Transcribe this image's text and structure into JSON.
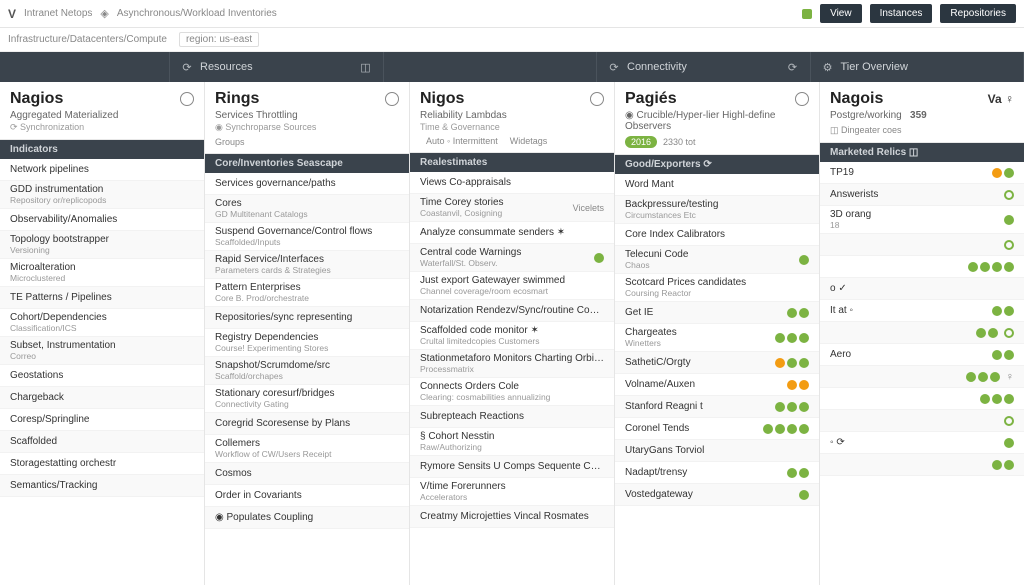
{
  "top": {
    "logo": "V",
    "logotext": "Intranet Netops",
    "crumb_icon": "◈",
    "subtitle": "Asynchronous/Workload Inventories",
    "btn1": "View",
    "btn2": "Instances",
    "btn3": "Repositories"
  },
  "crumbs": {
    "path": "Infrastructure/Datacenters/Compute",
    "tag": "region: us-east"
  },
  "tabs": [
    {
      "icon": "⟳",
      "label": "Resources",
      "right": "◫"
    },
    {
      "icon": "",
      "label": "",
      "right": ""
    },
    {
      "icon": "⟳",
      "label": "Connectivity",
      "right": "⟳"
    },
    {
      "icon": "⚙",
      "label": "Tier Overview",
      "right": ""
    }
  ],
  "panels": [
    {
      "title": "Nagios",
      "title_icon": "⊕",
      "sub": "Aggregated Materialized",
      "sub2": "⟳ Synchronization",
      "section": "Indicators",
      "rows": [
        {
          "l1": "Network pipelines",
          "l2": ""
        },
        {
          "l1": "GDD instrumentation",
          "l2": "Repository or/replicopods"
        },
        {
          "l1": "Observability/Anomalies",
          "l2": ""
        },
        {
          "l1": "Topology bootstrapper",
          "l2": "Versioning"
        },
        {
          "l1": "Microalteration",
          "l2": "Microclustered"
        },
        {
          "l1": "TE Patterns / Pipelines",
          "l2": ""
        },
        {
          "l1": "Cohort/Dependencies",
          "l2": "Classification/ICS"
        },
        {
          "l1": "Subset, Instrumentation",
          "l2": "Correo"
        },
        {
          "l1": "Geostations",
          "l2": ""
        },
        {
          "l1": "Chargeback",
          "l2": ""
        },
        {
          "l1": "Coresp/Springline",
          "l2": ""
        },
        {
          "l1": "Scaffolded",
          "l2": ""
        },
        {
          "l1": "Storagestatting orchestr",
          "l2": ""
        },
        {
          "l1": "Semantics/Tracking",
          "l2": ""
        }
      ]
    },
    {
      "title": "Rings",
      "title_icon": "✶",
      "sub": "Services Throttling",
      "sub2": "◉ Synchroparse Sources",
      "meta": "Groups",
      "section": "Core/Inventories Seascape",
      "rows": [
        {
          "l1": "Services governance/paths",
          "l2": ""
        },
        {
          "l1": "Cores",
          "l2": "GD Multitenant Catalogs"
        },
        {
          "l1": "Suspend Governance/Control flows",
          "l2": "Scaffolded/Inputs"
        },
        {
          "l1": "Rapid Service/Interfaces",
          "l2": "Parameters cards & Strategies"
        },
        {
          "l1": "Pattern Enterprises",
          "l2": "Core B. Prod/orchestrate"
        },
        {
          "l1": "Repositories/sync representing",
          "l2": ""
        },
        {
          "l1": "Registry Dependencies",
          "l2": "Course! Experimenting Stores"
        },
        {
          "l1": "Snapshot/Scrumdome/src",
          "l2": "Scaffold/orchapes"
        },
        {
          "l1": "Stationary coresurf/bridges",
          "l2": "Connectivity Gating"
        },
        {
          "l1": "Coregrid Scoresense by Plans",
          "l2": ""
        },
        {
          "l1": "Collemers",
          "l2": "Workflow of CW/Users Receipt"
        },
        {
          "l1": "Cosmos",
          "l2": ""
        },
        {
          "l1": "Order in Covariants",
          "l2": ""
        },
        {
          "l1": "◉ Populates Coupling",
          "l2": ""
        }
      ]
    },
    {
      "title": "Nigos",
      "title_icon": "⊕",
      "sub": "Reliability Lambdas",
      "sub2": "Time & Governance",
      "meta_r": "Auto  ◦ Intermittent",
      "extra": "Widetags",
      "section": "Realestimates",
      "rows": [
        {
          "l1": "Views Co-appraisals",
          "l2": ""
        },
        {
          "l1": "Time Corey stories",
          "l2": "Coastanvil, Cosigning",
          "extra": "Vicelets"
        },
        {
          "l1": "Analyze consummate senders  ✶",
          "l2": ""
        },
        {
          "l1": "Central code Warnings",
          "l2": "Waterfall/St. Observ.",
          "dot": "g"
        },
        {
          "l1": "Just export Gatewayer swimmed",
          "l2": "Channel coverage/room ecosmart"
        },
        {
          "l1": "Notarization Rendezv/Sync/routine Cosmate",
          "l2": ""
        },
        {
          "l1": "Scaffolded code monitor  ✶",
          "l2": "Crultal limitedcopies Customers"
        },
        {
          "l1": "Stationmetaforo Monitors Charting Orbits Gas",
          "l2": "Processmatrix"
        },
        {
          "l1": "Connects Orders Cole",
          "l2": "Clearing: cosmabilities annualizing"
        },
        {
          "l1": "Subrepteach Reactions",
          "l2": ""
        },
        {
          "l1": "§ Cohort Nesstin",
          "l2": "Raw/Authorizing"
        },
        {
          "l1": "Rymore Sensits U Comps    Sequente Cosperates",
          "l2": ""
        },
        {
          "l1": "V/time Forerunners",
          "l2": "Accelerators"
        },
        {
          "l1": "Creatmy Microjetties    Vincal Rosmates",
          "l2": ""
        }
      ]
    },
    {
      "title": "Pagiés",
      "title_icon": "⊕",
      "sub": "◉ Crucible/Hyper-lier Highl-define Observers",
      "badge": "2016",
      "badge2": "2330 tot",
      "section": "Good/Exporters ⟳",
      "rows": [
        {
          "l1": "Word Mant",
          "l2": ""
        },
        {
          "l1": "Backpressure/testing",
          "l2": "Circumstances Etc"
        },
        {
          "l1": "Core Index Calibrators",
          "l2": ""
        },
        {
          "l1": "Telecuni Code",
          "l2": "Chaos",
          "dot": "g"
        },
        {
          "l1": "Scotcard Prices candidates",
          "l2": "Coursing Reactor"
        },
        {
          "l1": "Get IE",
          "l2": "",
          "dots": [
            "g",
            "g"
          ]
        },
        {
          "l1": "Chargeates",
          "l2": "Winetters",
          "dots": [
            "g",
            "g",
            "g"
          ]
        },
        {
          "l1": "SathetiC/Orgty",
          "l2": "",
          "dots": [
            "o",
            "g",
            "g"
          ]
        },
        {
          "l1": "Volname/Auxen",
          "l2": "",
          "dots": [
            "o",
            "o"
          ]
        },
        {
          "l1": "Stanford Reagni t",
          "l2": "",
          "dots": [
            "g",
            "g",
            "g"
          ]
        },
        {
          "l1": "Coronel Tends",
          "l2": "",
          "dots": [
            "g",
            "g",
            "g",
            "g"
          ]
        },
        {
          "l1": "UtaryGans Torviol",
          "l2": ""
        },
        {
          "l1": "Nadapt/trensy",
          "l2": "",
          "dots": [
            "g",
            "g"
          ]
        },
        {
          "l1": "Vostedgateway",
          "l2": "",
          "dots": [
            "g"
          ]
        }
      ]
    },
    {
      "title": "Nagois",
      "title_icon": "",
      "right": "Va ♀",
      "sub": "Postgre/working",
      "sub_r": "359",
      "meta": "◫ Dingeater coes",
      "section": "Marketed Relics  ◫",
      "rows": [
        {
          "l1": "TP19",
          "l2": "",
          "dots": [
            "o",
            "g"
          ]
        },
        {
          "l1": "Answerists",
          "l2": "",
          "ring": "gr"
        },
        {
          "l1": "3D orang",
          "l2": "18",
          "dots": [
            "g"
          ]
        },
        {
          "l1": "",
          "l2": "",
          "ring": "gr"
        },
        {
          "l1": "",
          "l2": "",
          "dots": [
            "g",
            "g",
            "g",
            "g"
          ]
        },
        {
          "l1": "o  ✓",
          "l2": "",
          "small": true
        },
        {
          "l1": "It at ◦",
          "l2": "",
          "dots": [
            "g",
            "g"
          ]
        },
        {
          "l1": "",
          "l2": "",
          "dots": [
            "g",
            "g"
          ],
          "ring": "gr"
        },
        {
          "l1": "Aero",
          "l2": "",
          "dots": [
            "g",
            "g"
          ]
        },
        {
          "l1": "",
          "l2": "",
          "dots": [
            "g",
            "g",
            "g"
          ],
          "extra_ic": "♀"
        },
        {
          "l1": "",
          "l2": "",
          "dots": [
            "g",
            "g",
            "g"
          ]
        },
        {
          "l1": "",
          "l2": "",
          "ring": "gr"
        },
        {
          "l1": "◦ ⟳",
          "l2": "",
          "dots": [
            "g"
          ]
        },
        {
          "l1": "",
          "l2": "",
          "dots": [
            "g",
            "g"
          ]
        }
      ]
    }
  ],
  "colors": {
    "dark": "#3a434c",
    "green": "#7cb342",
    "orange": "#f39c12",
    "row_alt": "#f9f9f9",
    "border": "#e5e5e5"
  }
}
